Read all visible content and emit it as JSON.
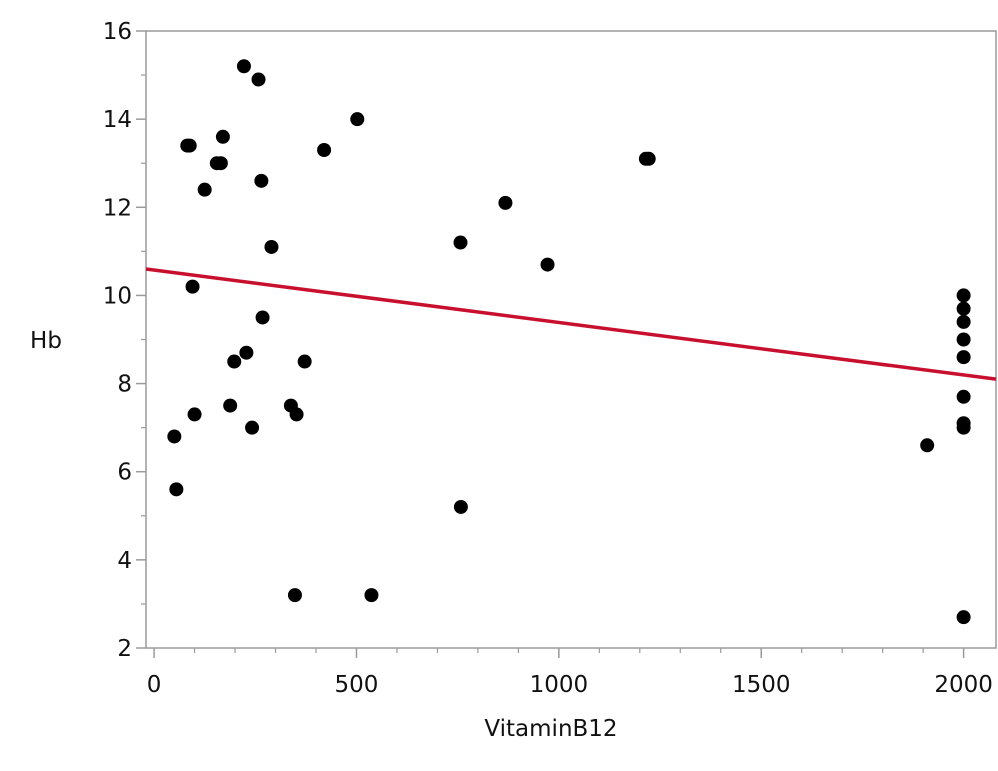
{
  "chart_data": {
    "type": "scatter",
    "title": "",
    "xlabel": "VitaminB12",
    "ylabel": "Hb",
    "xlim": [
      -20,
      2080
    ],
    "ylim": [
      2,
      16
    ],
    "x_ticks": [
      0,
      500,
      1000,
      1500,
      2000
    ],
    "y_ticks": [
      2,
      4,
      6,
      8,
      10,
      12,
      14,
      16
    ],
    "grid": false,
    "legend": "none",
    "colors": {
      "points": "#000000",
      "fit_line": "#c8102e",
      "frame": "#9a9a9a",
      "background": "#ffffff"
    },
    "points": [
      {
        "x": 50,
        "y": 6.8
      },
      {
        "x": 55,
        "y": 5.6
      },
      {
        "x": 82,
        "y": 13.4
      },
      {
        "x": 88,
        "y": 13.4
      },
      {
        "x": 95,
        "y": 10.2
      },
      {
        "x": 100,
        "y": 7.3
      },
      {
        "x": 125,
        "y": 12.4
      },
      {
        "x": 155,
        "y": 13.0
      },
      {
        "x": 165,
        "y": 13.0
      },
      {
        "x": 170,
        "y": 13.6
      },
      {
        "x": 188,
        "y": 7.5
      },
      {
        "x": 198,
        "y": 8.5
      },
      {
        "x": 222,
        "y": 15.2
      },
      {
        "x": 228,
        "y": 8.7
      },
      {
        "x": 242,
        "y": 7.0
      },
      {
        "x": 258,
        "y": 14.9
      },
      {
        "x": 265,
        "y": 12.6
      },
      {
        "x": 268,
        "y": 9.5
      },
      {
        "x": 290,
        "y": 11.1
      },
      {
        "x": 338,
        "y": 7.5
      },
      {
        "x": 348,
        "y": 3.2
      },
      {
        "x": 352,
        "y": 7.3
      },
      {
        "x": 372,
        "y": 8.5
      },
      {
        "x": 420,
        "y": 13.3
      },
      {
        "x": 502,
        "y": 14.0
      },
      {
        "x": 537,
        "y": 3.2
      },
      {
        "x": 757,
        "y": 11.2
      },
      {
        "x": 758,
        "y": 5.2
      },
      {
        "x": 868,
        "y": 12.1
      },
      {
        "x": 972,
        "y": 10.7
      },
      {
        "x": 1215,
        "y": 13.1
      },
      {
        "x": 1222,
        "y": 13.1
      },
      {
        "x": 1910,
        "y": 6.6
      },
      {
        "x": 2000,
        "y": 10.0
      },
      {
        "x": 2000,
        "y": 9.7
      },
      {
        "x": 2000,
        "y": 9.4
      },
      {
        "x": 2000,
        "y": 9.0
      },
      {
        "x": 2000,
        "y": 8.6
      },
      {
        "x": 2000,
        "y": 7.7
      },
      {
        "x": 2000,
        "y": 7.1
      },
      {
        "x": 2000,
        "y": 7.0
      },
      {
        "x": 2000,
        "y": 2.7
      }
    ],
    "fit_line": {
      "x": [
        -20,
        2080
      ],
      "y": [
        10.6,
        8.1
      ]
    }
  }
}
